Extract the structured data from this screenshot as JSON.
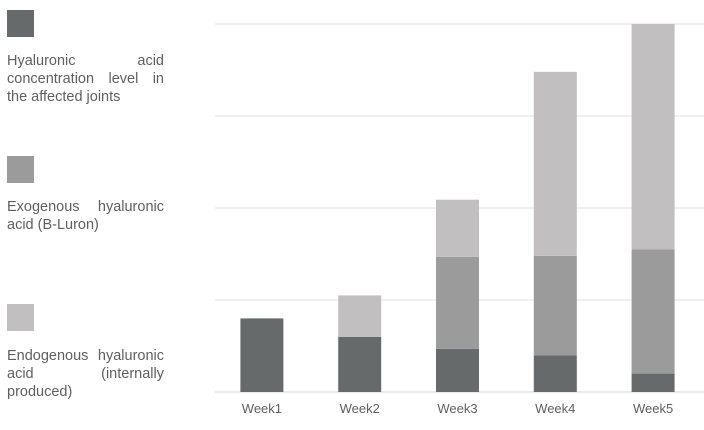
{
  "legend": [
    {
      "label": "Hyaluronic acid concentration level in the affected joints",
      "color": "#666a6a"
    },
    {
      "label": "Exogenous hyaluronic acid (B-Luron)",
      "color": "#9b9b9b"
    },
    {
      "label": "Endogenous hyaluronic acid (internally produced)",
      "color": "#c1bfc0"
    }
  ],
  "chart_data": {
    "type": "bar",
    "stacked": true,
    "categories": [
      "Week1",
      "Week2",
      "Week3",
      "Week4",
      "Week5"
    ],
    "series": [
      {
        "name": "Hyaluronic acid concentration level in the affected joints",
        "values": [
          0.8,
          0.6,
          0.47,
          0.4,
          0.2
        ],
        "color": "#666a6a"
      },
      {
        "name": "Exogenous hyaluronic acid (B-Luron)",
        "values": [
          0,
          0,
          1.0,
          1.08,
          1.35
        ],
        "color": "#9b9b9b"
      },
      {
        "name": "Endogenous hyaluronic acid (internally produced)",
        "values": [
          0,
          0.45,
          0.62,
          2.0,
          2.45
        ],
        "color": "#c1bfc0"
      }
    ],
    "ylim": [
      0,
      4
    ],
    "grid": true,
    "legend_position": "left"
  }
}
